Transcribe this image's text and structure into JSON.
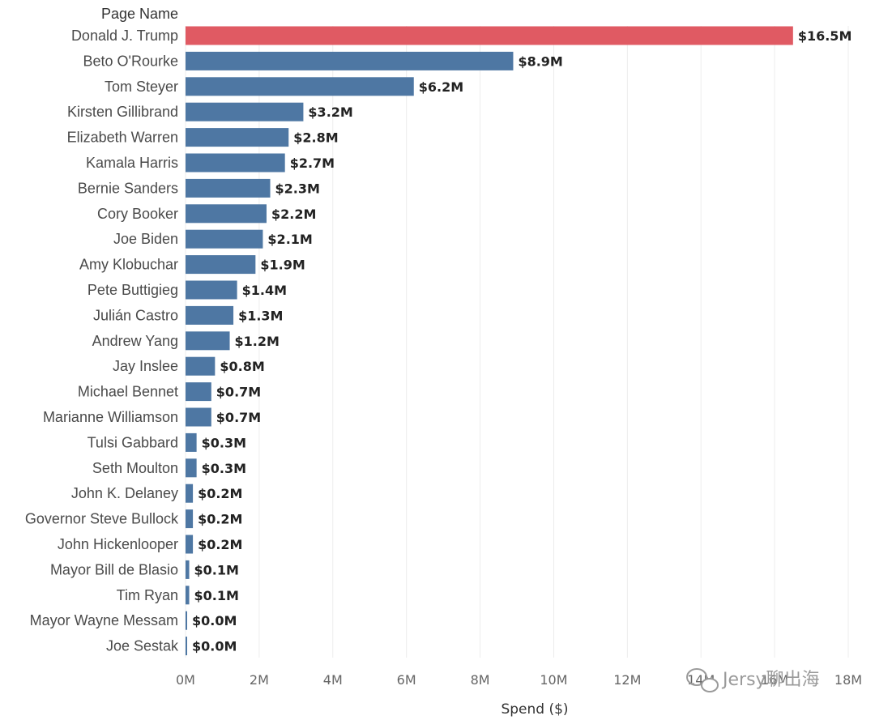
{
  "chart_data": {
    "type": "bar",
    "orientation": "horizontal",
    "category_header": "Page Name",
    "xlabel": "Spend ($)",
    "xlim": [
      0,
      18
    ],
    "x_ticks": [
      0,
      2,
      4,
      6,
      8,
      10,
      12,
      14,
      16,
      18
    ],
    "x_tick_labels": [
      "0M",
      "2M",
      "4M",
      "6M",
      "8M",
      "10M",
      "12M",
      "14M",
      "16M",
      "18M"
    ],
    "grid": true,
    "highlight_color": "#e05a63",
    "bar_color": "#4e77a3",
    "categories": [
      "Donald J. Trump",
      "Beto O'Rourke",
      "Tom Steyer",
      "Kirsten Gillibrand",
      "Elizabeth Warren",
      "Kamala Harris",
      "Bernie Sanders",
      "Cory Booker",
      "Joe Biden",
      "Amy Klobuchar",
      "Pete Buttigieg",
      "Julián Castro",
      "Andrew Yang",
      "Jay Inslee",
      "Michael Bennet",
      "Marianne Williamson",
      "Tulsi Gabbard",
      "Seth Moulton",
      "John K. Delaney",
      "Governor Steve Bullock",
      "John Hickenlooper",
      "Mayor Bill de Blasio",
      "Tim Ryan",
      "Mayor Wayne Messam",
      "Joe Sestak"
    ],
    "values": [
      16.5,
      8.9,
      6.2,
      3.2,
      2.8,
      2.7,
      2.3,
      2.2,
      2.1,
      1.9,
      1.4,
      1.3,
      1.2,
      0.8,
      0.7,
      0.7,
      0.3,
      0.3,
      0.2,
      0.2,
      0.2,
      0.1,
      0.1,
      0.0,
      0.0
    ],
    "value_labels": [
      "$16.5M",
      "$8.9M",
      "$6.2M",
      "$3.2M",
      "$2.8M",
      "$2.7M",
      "$2.3M",
      "$2.2M",
      "$2.1M",
      "$1.9M",
      "$1.4M",
      "$1.3M",
      "$1.2M",
      "$0.8M",
      "$0.7M",
      "$0.7M",
      "$0.3M",
      "$0.3M",
      "$0.2M",
      "$0.2M",
      "$0.2M",
      "$0.1M",
      "$0.1M",
      "$0.0M",
      "$0.0M"
    ],
    "highlighted_index": 0
  },
  "watermark": {
    "text": "Jersy聊出海",
    "icon": "wechat-icon"
  }
}
